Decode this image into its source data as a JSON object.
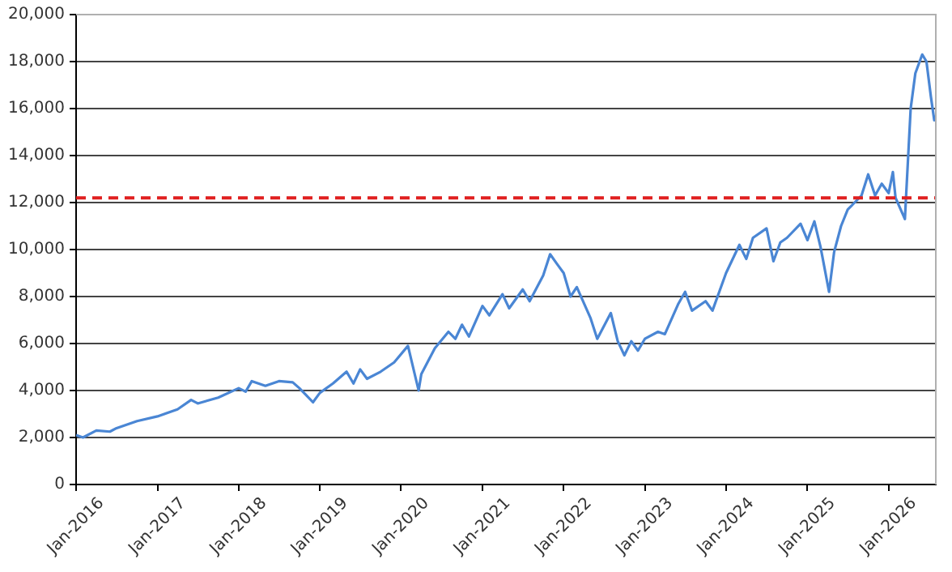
{
  "chart_data": {
    "type": "line",
    "x": [
      "2016-01",
      "2016-02",
      "2016-04",
      "2016-06",
      "2016-07",
      "2016-10",
      "2017-01",
      "2017-04",
      "2017-06",
      "2017-07",
      "2017-10",
      "2018-01",
      "2018-02",
      "2018-03",
      "2018-05",
      "2018-07",
      "2018-09",
      "2018-10",
      "2018-11",
      "2018-12",
      "2019-01",
      "2019-03",
      "2019-05",
      "2019-06",
      "2019-07",
      "2019-08",
      "2019-10",
      "2019-12",
      "2020-02",
      "2020-03-20",
      "2020-04",
      "2020-06",
      "2020-08",
      "2020-09",
      "2020-10",
      "2020-11",
      "2021-01",
      "2021-02",
      "2021-04",
      "2021-05",
      "2021-07",
      "2021-08",
      "2021-10",
      "2021-11",
      "2021-12",
      "2022-01",
      "2022-02",
      "2022-03",
      "2022-05",
      "2022-06",
      "2022-08",
      "2022-09",
      "2022-10",
      "2022-11",
      "2022-12",
      "2023-01",
      "2023-03",
      "2023-04",
      "2023-06",
      "2023-07",
      "2023-08",
      "2023-10",
      "2023-11",
      "2024-01",
      "2024-03",
      "2024-04",
      "2024-05",
      "2024-07",
      "2024-08",
      "2024-09",
      "2024-10",
      "2024-12",
      "2025-01",
      "2025-02",
      "2025-03",
      "2025-04-08",
      "2025-05",
      "2025-06",
      "2025-07",
      "2025-08",
      "2025-09",
      "2025-10",
      "2025-11",
      "2025-12",
      "2026-01",
      "2026-01-20",
      "2026-02",
      "2026-03-15",
      "2026-04-10",
      "2026-05",
      "2026-06",
      "2026-06-20",
      "2026-07-10",
      "2026-07-25",
      "2026-08"
    ],
    "series": [
      {
        "color": "#4a86d4",
        "values": [
          2100,
          2000,
          2300,
          2250,
          2400,
          2700,
          2900,
          3200,
          3600,
          3450,
          3700,
          4100,
          3950,
          4400,
          4200,
          4400,
          4350,
          4100,
          3800,
          3500,
          3900,
          4300,
          4800,
          4300,
          4900,
          4500,
          4800,
          5200,
          5900,
          4000,
          4700,
          5800,
          6500,
          6200,
          6800,
          6300,
          7600,
          7200,
          8100,
          7500,
          8300,
          7800,
          8900,
          9800,
          9400,
          9000,
          8000,
          8400,
          7100,
          6200,
          7300,
          6100,
          5500,
          6100,
          5700,
          6200,
          6500,
          6400,
          7700,
          8200,
          7400,
          7800,
          7400,
          9000,
          10200,
          9600,
          10500,
          10900,
          9500,
          10300,
          10500,
          11100,
          10400,
          11200,
          10100,
          8200,
          9900,
          11000,
          11700,
          12000,
          12300,
          13200,
          12300,
          12800,
          12400,
          13300,
          12200,
          11300,
          16000,
          17500,
          18300,
          18000,
          16500,
          15500,
          15700
        ]
      }
    ],
    "xlim": [
      "2016-01",
      "2026-08"
    ],
    "xticks": [
      {
        "value": "2016-01",
        "label": "Jan-2016"
      },
      {
        "value": "2017-01",
        "label": "Jan-2017"
      },
      {
        "value": "2018-01",
        "label": "Jan-2018"
      },
      {
        "value": "2019-01",
        "label": "Jan-2019"
      },
      {
        "value": "2020-01",
        "label": "Jan-2020"
      },
      {
        "value": "2021-01",
        "label": "Jan-2021"
      },
      {
        "value": "2022-01",
        "label": "Jan-2022"
      },
      {
        "value": "2023-01",
        "label": "Jan-2023"
      },
      {
        "value": "2024-01",
        "label": "Jan-2024"
      },
      {
        "value": "2025-01",
        "label": "Jan-2025"
      },
      {
        "value": "2026-01",
        "label": "Jan-2026"
      }
    ],
    "ylim": [
      0,
      20000
    ],
    "yticks": [
      {
        "value": 0,
        "label": "0"
      },
      {
        "value": 2000,
        "label": "2,000"
      },
      {
        "value": 4000,
        "label": "4,000"
      },
      {
        "value": 6000,
        "label": "6,000"
      },
      {
        "value": 8000,
        "label": "8,000"
      },
      {
        "value": 10000,
        "label": "10,000"
      },
      {
        "value": 12000,
        "label": "12,000"
      },
      {
        "value": 14000,
        "label": "14,000"
      },
      {
        "value": 16000,
        "label": "16,000"
      },
      {
        "value": 18000,
        "label": "18,000"
      },
      {
        "value": 20000,
        "label": "20,000"
      }
    ],
    "grid": "y",
    "legend": false,
    "marker": "none",
    "line_style": "solid",
    "ref_lines": [
      {
        "axis": "y",
        "value": 12200,
        "color": "#e02020",
        "line_style": "dashed"
      }
    ]
  }
}
